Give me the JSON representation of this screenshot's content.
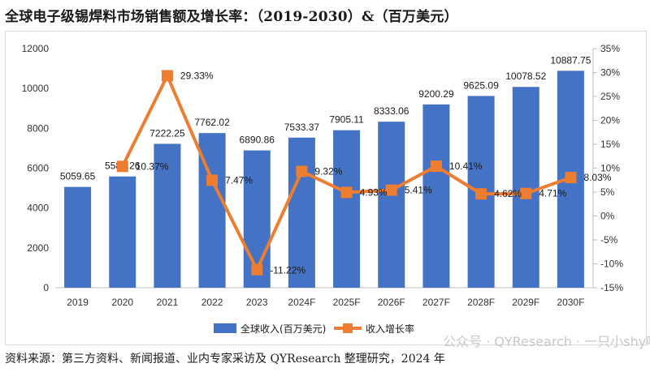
{
  "title": "全球电子级锡焊料市场销售额及增长率：（2019-2030）&（百万美元）",
  "source": "资料来源：第三方资料、新闻报道、业内专家采访及 QYResearch 整理研究，2024 年",
  "watermark": "公众号 · QYResearch · 一只小shy喵",
  "chart_data": {
    "type": "bar",
    "categories": [
      "2019",
      "2020",
      "2021",
      "2022",
      "2023",
      "2024F",
      "2025F",
      "2026F",
      "2027F",
      "2028F",
      "2029F",
      "2030F"
    ],
    "series": [
      {
        "name": "全球收入(百万美元)",
        "type": "bar",
        "axis": "left",
        "color": "#4472C4",
        "values": [
          5059.65,
          5584.26,
          7222.25,
          7762.02,
          6890.86,
          7533.37,
          7905.11,
          8333.06,
          9200.29,
          9625.09,
          10078.52,
          10887.75
        ],
        "labels": [
          "5059.65",
          "5584.26",
          "7222.25",
          "7762.02",
          "6890.86",
          "7533.37",
          "7905.11",
          "8333.06",
          "9200.29",
          "9625.09",
          "10078.52",
          "10887.75"
        ]
      },
      {
        "name": "收入增长率",
        "type": "line",
        "axis": "right",
        "color": "#ED7D31",
        "values": [
          null,
          10.37,
          29.33,
          7.47,
          -11.22,
          9.32,
          4.93,
          5.41,
          10.41,
          4.62,
          4.71,
          8.03
        ],
        "labels": [
          "",
          "10.37%",
          "29.33%",
          "7.47%",
          "-11.22%",
          "9.32%",
          "4.93%",
          "5.41%",
          "10.41%",
          "4.62%",
          "4.71%",
          "8.03%"
        ]
      }
    ],
    "ylim": [
      0,
      12000
    ],
    "yticks": [
      "0",
      "2000",
      "4000",
      "6000",
      "8000",
      "10000",
      "12000"
    ],
    "y2lim": [
      -15,
      35
    ],
    "y2ticks": [
      "-15%",
      "-10%",
      "-5%",
      "0%",
      "5%",
      "10%",
      "15%",
      "20%",
      "25%",
      "30%",
      "35%"
    ],
    "legend": "bottom",
    "grid": false
  }
}
